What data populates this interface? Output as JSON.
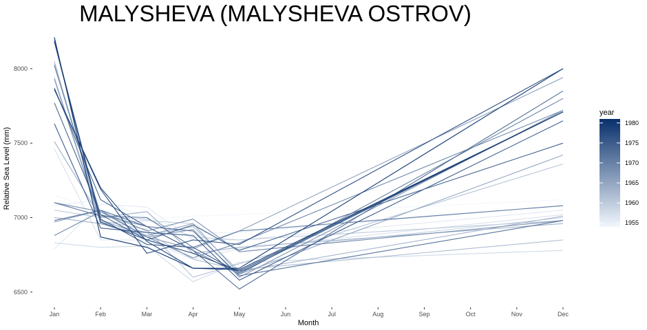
{
  "chart_data": {
    "type": "line",
    "title": "MALYSHEVA (MALYSHEVA OSTROV)",
    "xlabel": "Month",
    "ylabel": "Relative Sea Level (mm)",
    "categories": [
      "Jan",
      "Feb",
      "Mar",
      "Apr",
      "May",
      "Jun",
      "Jul",
      "Aug",
      "Sep",
      "Oct",
      "Nov",
      "Dec"
    ],
    "yticks": [
      6500,
      7000,
      7500,
      8000
    ],
    "ylim": [
      6430,
      8230
    ],
    "grid": false,
    "legend": {
      "title": "year",
      "type": "colorbar",
      "ticks": [
        1955,
        1960,
        1965,
        1970,
        1975,
        1980
      ],
      "range": [
        1954,
        1981
      ],
      "placement": "right",
      "color_low": "#f2f7fd",
      "color_high": "#08306b"
    },
    "series": [
      {
        "year": 1954,
        "values": [
          7150,
          7050,
          6990,
          7010,
          7020,
          null,
          null,
          null,
          null,
          null,
          null,
          7120
        ]
      },
      {
        "year": 1955,
        "values": [
          7080,
          7120,
          7000,
          6900,
          6900,
          null,
          null,
          null,
          null,
          null,
          null,
          7080
        ]
      },
      {
        "year": 1956,
        "values": [
          6790,
          7090,
          7070,
          6850,
          6850,
          null,
          null,
          null,
          null,
          null,
          null,
          7050
        ]
      },
      {
        "year": 1957,
        "values": [
          7460,
          6850,
          6850,
          6720,
          6790,
          null,
          null,
          null,
          null,
          null,
          null,
          7020
        ]
      },
      {
        "year": 1958,
        "values": [
          6830,
          6800,
          6810,
          6570,
          6700,
          null,
          null,
          null,
          null,
          null,
          null,
          6780
        ]
      },
      {
        "year": 1959,
        "values": [
          7000,
          6960,
          6980,
          6960,
          6770,
          null,
          null,
          null,
          null,
          null,
          null,
          7000
        ]
      },
      {
        "year": 1960,
        "values": [
          7050,
          7000,
          6990,
          6870,
          6850,
          null,
          null,
          null,
          null,
          null,
          null,
          6980
        ]
      },
      {
        "year": 1961,
        "values": [
          7940,
          6980,
          6920,
          6600,
          6690,
          null,
          null,
          null,
          null,
          null,
          null,
          7360
        ]
      },
      {
        "year": 1962,
        "values": [
          8050,
          6970,
          6900,
          6720,
          6650,
          null,
          null,
          null,
          null,
          null,
          null,
          6850
        ]
      },
      {
        "year": 1963,
        "values": [
          7000,
          6960,
          6880,
          6940,
          6640,
          null,
          null,
          null,
          null,
          null,
          null,
          7010
        ]
      },
      {
        "year": 1964,
        "values": [
          7510,
          7000,
          7040,
          6760,
          6800,
          null,
          null,
          null,
          null,
          null,
          null,
          6960
        ]
      },
      {
        "year": 1965,
        "values": [
          8030,
          6980,
          6880,
          6960,
          6620,
          null,
          null,
          null,
          null,
          null,
          null,
          7420
        ]
      },
      {
        "year": 1966,
        "values": [
          6970,
          7050,
          6870,
          6790,
          6910,
          null,
          null,
          null,
          null,
          null,
          null,
          7940
        ]
      },
      {
        "year": 1967,
        "values": [
          7930,
          6960,
          6870,
          6920,
          6600,
          null,
          null,
          null,
          null,
          null,
          null,
          7720
        ]
      },
      {
        "year": 1968,
        "values": [
          7100,
          7040,
          6910,
          6990,
          6770,
          null,
          null,
          null,
          null,
          null,
          null,
          6980
        ]
      },
      {
        "year": 1969,
        "values": [
          6880,
          7040,
          6870,
          6730,
          6830,
          null,
          null,
          null,
          null,
          null,
          null,
          7720
        ]
      },
      {
        "year": 1970,
        "values": [
          8020,
          7020,
          6940,
          6780,
          6620,
          null,
          null,
          null,
          null,
          null,
          null,
          7800
        ]
      },
      {
        "year": 1971,
        "values": [
          7100,
          7010,
          7000,
          6800,
          6910,
          null,
          null,
          null,
          null,
          null,
          null,
          7080
        ]
      },
      {
        "year": 1972,
        "values": [
          6980,
          7050,
          6940,
          6910,
          6610,
          null,
          null,
          null,
          null,
          null,
          null,
          6980
        ]
      },
      {
        "year": 1973,
        "values": [
          7870,
          7120,
          6940,
          6780,
          6520,
          null,
          null,
          null,
          null,
          null,
          null,
          7850
        ]
      },
      {
        "year": 1974,
        "values": [
          7770,
          7020,
          6850,
          6950,
          6780,
          null,
          null,
          null,
          null,
          null,
          null,
          7500
        ]
      },
      {
        "year": 1975,
        "values": [
          7630,
          6930,
          6900,
          6880,
          6580,
          null,
          null,
          null,
          null,
          null,
          null,
          7650
        ]
      },
      {
        "year": 1976,
        "values": [
          8190,
          6990,
          6820,
          6800,
          6630,
          null,
          null,
          null,
          null,
          null,
          null,
          7710
        ]
      },
      {
        "year": 1977,
        "values": [
          7860,
          7190,
          6760,
          6850,
          6820,
          null,
          null,
          null,
          null,
          null,
          null,
          8000
        ]
      },
      {
        "year": 1978,
        "values": [
          8180,
          6970,
          6850,
          6760,
          6640,
          null,
          null,
          null,
          null,
          null,
          null,
          7710
        ]
      },
      {
        "year": 1979,
        "values": [
          7860,
          7200,
          6840,
          6660,
          6650,
          null,
          null,
          null,
          null,
          null,
          null,
          7710
        ]
      },
      {
        "year": 1980,
        "values": [
          8210,
          6870,
          6800,
          6660,
          6660,
          null,
          null,
          null,
          null,
          null,
          null,
          8000
        ]
      }
    ]
  }
}
